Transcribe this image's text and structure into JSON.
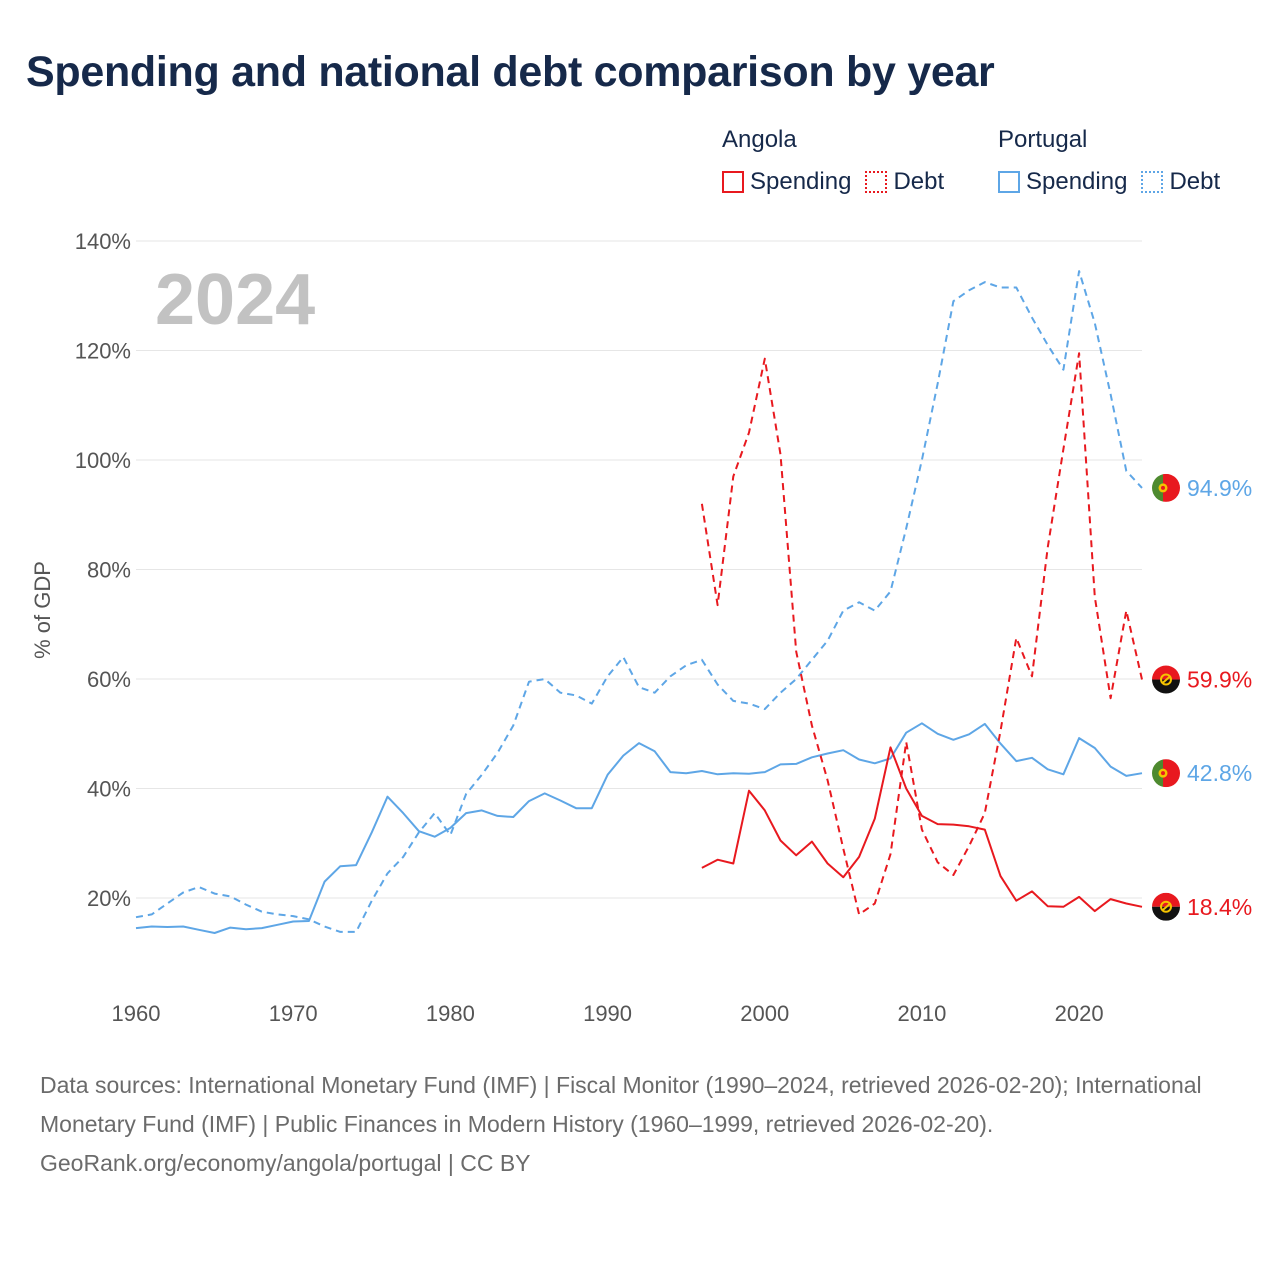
{
  "title": "Spending and national debt comparison by year",
  "legend": {
    "angola": {
      "name": "Angola",
      "spending_label": "Spending",
      "debt_label": "Debt",
      "color": "#e8191f"
    },
    "portugal": {
      "name": "Portugal",
      "spending_label": "Spending",
      "debt_label": "Debt",
      "color": "#5ea6e6"
    }
  },
  "footer": {
    "sources": "Data sources: International Monetary Fund (IMF) | Fiscal Monitor (1990–2024, retrieved 2026-02-20); International Monetary Fund (IMF) | Public Finances in Modern History (1960–1999, retrieved 2026-02-20).",
    "credit": "GeoRank.org/economy/angola/portugal | CC BY"
  },
  "chart_data": {
    "type": "line",
    "current_year_label": "2024",
    "ylabel": "% of GDP",
    "xlabel": "",
    "xlim": [
      1960,
      2024
    ],
    "ylim": [
      5,
      145
    ],
    "x_ticks": [
      1960,
      1970,
      1980,
      1990,
      2000,
      2010,
      2020
    ],
    "y_ticks": [
      20,
      40,
      60,
      80,
      100,
      120,
      140
    ],
    "y_tick_suffix": "%",
    "series": [
      {
        "name": "Portugal Debt",
        "country": "Portugal",
        "metric": "Debt",
        "style": "dashed",
        "color": "#5ea6e6",
        "end_label": "94.9%",
        "points": [
          [
            1960,
            16.5
          ],
          [
            1961,
            17
          ],
          [
            1962,
            19
          ],
          [
            1963,
            21
          ],
          [
            1964,
            22
          ],
          [
            1965,
            20.8
          ],
          [
            1966,
            20.3
          ],
          [
            1967,
            18.8
          ],
          [
            1968,
            17.5
          ],
          [
            1969,
            17
          ],
          [
            1970,
            16.7
          ],
          [
            1971,
            16.1
          ],
          [
            1972,
            14.8
          ],
          [
            1973,
            13.8
          ],
          [
            1974,
            13.8
          ],
          [
            1975,
            19.5
          ],
          [
            1976,
            24.5
          ],
          [
            1977,
            27.5
          ],
          [
            1978,
            32
          ],
          [
            1979,
            35.5
          ],
          [
            1980,
            31.5
          ],
          [
            1981,
            39
          ],
          [
            1982,
            42.5
          ],
          [
            1983,
            46.5
          ],
          [
            1984,
            51.5
          ],
          [
            1985,
            59.5
          ],
          [
            1986,
            60
          ],
          [
            1987,
            57.5
          ],
          [
            1988,
            57
          ],
          [
            1989,
            55.5
          ],
          [
            1990,
            60.5
          ],
          [
            1991,
            64
          ],
          [
            1992,
            58.5
          ],
          [
            1993,
            57.5
          ],
          [
            1994,
            60.5
          ],
          [
            1995,
            62.5
          ],
          [
            1996,
            63.5
          ],
          [
            1997,
            59
          ],
          [
            1998,
            56
          ],
          [
            1999,
            55.5
          ],
          [
            2000,
            54.5
          ],
          [
            2001,
            57.5
          ],
          [
            2002,
            60
          ],
          [
            2003,
            63.5
          ],
          [
            2004,
            67
          ],
          [
            2005,
            72.5
          ],
          [
            2006,
            74
          ],
          [
            2007,
            72.5
          ],
          [
            2008,
            76
          ],
          [
            2009,
            87.5
          ],
          [
            2010,
            100
          ],
          [
            2011,
            114
          ],
          [
            2012,
            129
          ],
          [
            2013,
            131
          ],
          [
            2014,
            132.5
          ],
          [
            2015,
            131.5
          ],
          [
            2016,
            131.5
          ],
          [
            2017,
            126
          ],
          [
            2018,
            121
          ],
          [
            2019,
            116.5
          ],
          [
            2020,
            134.5
          ],
          [
            2021,
            125
          ],
          [
            2022,
            112
          ],
          [
            2023,
            98
          ],
          [
            2024,
            94.9
          ]
        ]
      },
      {
        "name": "Portugal Spending",
        "country": "Portugal",
        "metric": "Spending",
        "style": "solid",
        "color": "#5ea6e6",
        "end_label": "42.8%",
        "points": [
          [
            1960,
            14.5
          ],
          [
            1961,
            14.8
          ],
          [
            1962,
            14.7
          ],
          [
            1963,
            14.8
          ],
          [
            1964,
            14.2
          ],
          [
            1965,
            13.6
          ],
          [
            1966,
            14.6
          ],
          [
            1967,
            14.3
          ],
          [
            1968,
            14.5
          ],
          [
            1969,
            15.1
          ],
          [
            1970,
            15.7
          ],
          [
            1971,
            15.8
          ],
          [
            1972,
            23
          ],
          [
            1973,
            25.8
          ],
          [
            1974,
            26
          ],
          [
            1975,
            32
          ],
          [
            1976,
            38.5
          ],
          [
            1977,
            35.5
          ],
          [
            1978,
            32.2
          ],
          [
            1979,
            31.2
          ],
          [
            1980,
            32.8
          ],
          [
            1981,
            35.5
          ],
          [
            1982,
            36
          ],
          [
            1983,
            35
          ],
          [
            1984,
            34.8
          ],
          [
            1985,
            37.7
          ],
          [
            1986,
            39.1
          ],
          [
            1987,
            37.8
          ],
          [
            1988,
            36.4
          ],
          [
            1989,
            36.4
          ],
          [
            1990,
            42.5
          ],
          [
            1991,
            46
          ],
          [
            1992,
            48.3
          ],
          [
            1993,
            46.8
          ],
          [
            1994,
            43
          ],
          [
            1995,
            42.8
          ],
          [
            1996,
            43.2
          ],
          [
            1997,
            42.6
          ],
          [
            1998,
            42.8
          ],
          [
            1999,
            42.7
          ],
          [
            2000,
            43
          ],
          [
            2001,
            44.4
          ],
          [
            2002,
            44.5
          ],
          [
            2003,
            45.7
          ],
          [
            2004,
            46.4
          ],
          [
            2005,
            47
          ],
          [
            2006,
            45.3
          ],
          [
            2007,
            44.6
          ],
          [
            2008,
            45.5
          ],
          [
            2009,
            50.2
          ],
          [
            2010,
            51.9
          ],
          [
            2011,
            50
          ],
          [
            2012,
            48.9
          ],
          [
            2013,
            49.9
          ],
          [
            2014,
            51.8
          ],
          [
            2015,
            48.2
          ],
          [
            2016,
            45
          ],
          [
            2017,
            45.6
          ],
          [
            2018,
            43.5
          ],
          [
            2019,
            42.6
          ],
          [
            2020,
            49.2
          ],
          [
            2021,
            47.4
          ],
          [
            2022,
            44
          ],
          [
            2023,
            42.3
          ],
          [
            2024,
            42.8
          ]
        ]
      },
      {
        "name": "Angola Debt",
        "country": "Angola",
        "metric": "Debt",
        "style": "dashed",
        "color": "#e8191f",
        "end_label": "59.9%",
        "points": [
          [
            1996,
            92
          ],
          [
            1997,
            73.5
          ],
          [
            1998,
            97
          ],
          [
            1999,
            105
          ],
          [
            2000,
            118.5
          ],
          [
            2001,
            101
          ],
          [
            2002,
            65
          ],
          [
            2003,
            51.5
          ],
          [
            2004,
            41.5
          ],
          [
            2005,
            29
          ],
          [
            2006,
            17
          ],
          [
            2007,
            19
          ],
          [
            2008,
            28
          ],
          [
            2009,
            48.5
          ],
          [
            2010,
            32.5
          ],
          [
            2011,
            26.5
          ],
          [
            2012,
            24.2
          ],
          [
            2013,
            29.5
          ],
          [
            2014,
            35.5
          ],
          [
            2015,
            50.5
          ],
          [
            2016,
            67.5
          ],
          [
            2017,
            60.5
          ],
          [
            2018,
            84
          ],
          [
            2019,
            102
          ],
          [
            2020,
            119.5
          ],
          [
            2021,
            75
          ],
          [
            2022,
            56.5
          ],
          [
            2023,
            72.5
          ],
          [
            2024,
            59.9
          ]
        ]
      },
      {
        "name": "Angola Spending",
        "country": "Angola",
        "metric": "Spending",
        "style": "solid",
        "color": "#e8191f",
        "end_label": "18.4%",
        "points": [
          [
            1996,
            25.5
          ],
          [
            1997,
            27
          ],
          [
            1998,
            26.3
          ],
          [
            1999,
            39.6
          ],
          [
            2000,
            36
          ],
          [
            2001,
            30.5
          ],
          [
            2002,
            27.8
          ],
          [
            2003,
            30.3
          ],
          [
            2004,
            26.3
          ],
          [
            2005,
            23.8
          ],
          [
            2006,
            27.5
          ],
          [
            2007,
            34.5
          ],
          [
            2008,
            47.5
          ],
          [
            2009,
            40
          ],
          [
            2010,
            35
          ],
          [
            2011,
            33.5
          ],
          [
            2012,
            33.4
          ],
          [
            2013,
            33.1
          ],
          [
            2014,
            32.5
          ],
          [
            2015,
            24
          ],
          [
            2016,
            19.5
          ],
          [
            2017,
            21.2
          ],
          [
            2018,
            18.5
          ],
          [
            2019,
            18.4
          ],
          [
            2020,
            20.2
          ],
          [
            2021,
            17.6
          ],
          [
            2022,
            19.8
          ],
          [
            2023,
            19
          ],
          [
            2024,
            18.4
          ]
        ]
      }
    ]
  }
}
